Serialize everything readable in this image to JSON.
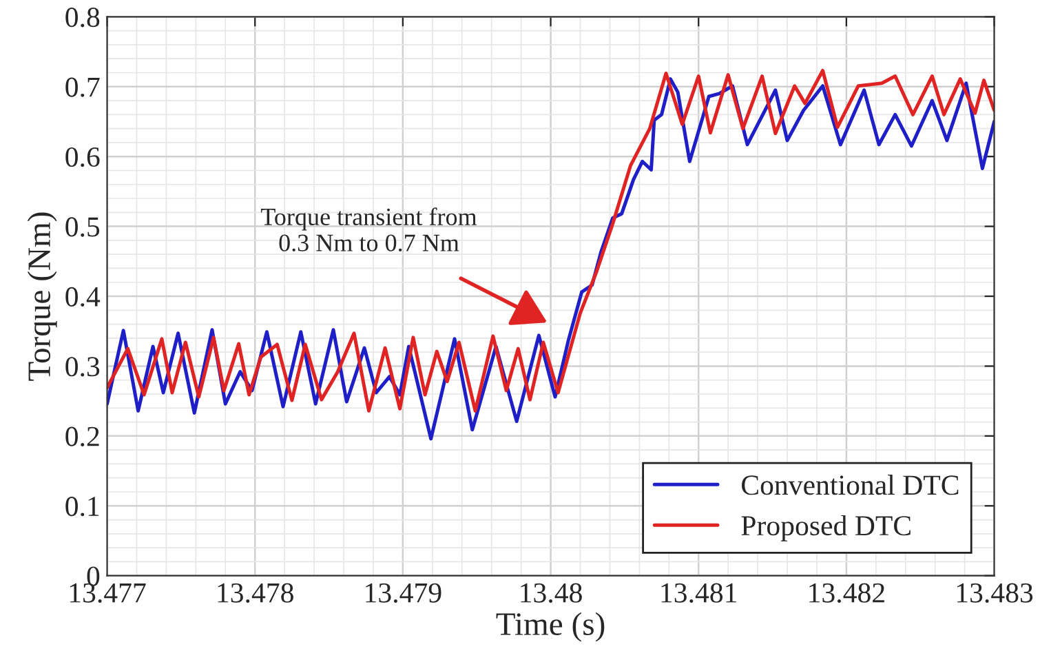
{
  "chart_data": {
    "type": "line",
    "xlabel": "Time (s)",
    "ylabel": "Torque (Nm)",
    "xlim": [
      13.477,
      13.483
    ],
    "xticks": [
      13.477,
      13.478,
      13.479,
      13.48,
      13.481,
      13.482,
      13.483
    ],
    "ylim": [
      0,
      0.8
    ],
    "yticks": [
      0,
      0.1,
      0.2,
      0.3,
      0.4,
      0.5,
      0.6,
      0.7,
      0.8
    ],
    "grid": true,
    "legend": "bottom right",
    "line_style": "solid",
    "marker": "none",
    "annotations": [
      "Torque transient from\n0.3 Nm to 0.7 Nm"
    ],
    "series": [
      {
        "name": "Conventional DTC",
        "color": "#1f1fc8",
        "x": [
          13.477,
          13.47711,
          13.47721,
          13.47731,
          13.47738,
          13.47748,
          13.47759,
          13.47771,
          13.4778,
          13.4779,
          13.47798,
          13.47808,
          13.47819,
          13.47831,
          13.47841,
          13.47853,
          13.47862,
          13.47874,
          13.47882,
          13.47891,
          13.47898,
          13.47904,
          13.47919,
          13.47935,
          13.47947,
          13.47963,
          13.47977,
          13.47992,
          13.48003,
          13.48012,
          13.48021,
          13.48028,
          13.48034,
          13.48042,
          13.48048,
          13.48056,
          13.48062,
          13.48068,
          13.4807,
          13.48075,
          13.48081,
          13.48086,
          13.48094,
          13.48107,
          13.48114,
          13.48123,
          13.48133,
          13.48152,
          13.4816,
          13.48171,
          13.48184,
          13.48196,
          13.48212,
          13.48222,
          13.48233,
          13.48244,
          13.48258,
          13.48268,
          13.48281,
          13.48292,
          13.483
        ],
        "values": [
          0.246,
          0.351,
          0.236,
          0.328,
          0.262,
          0.347,
          0.233,
          0.352,
          0.246,
          0.292,
          0.265,
          0.349,
          0.242,
          0.349,
          0.246,
          0.352,
          0.249,
          0.326,
          0.262,
          0.285,
          0.259,
          0.328,
          0.196,
          0.339,
          0.209,
          0.328,
          0.221,
          0.344,
          0.256,
          0.337,
          0.406,
          0.416,
          0.463,
          0.512,
          0.518,
          0.567,
          0.593,
          0.581,
          0.652,
          0.66,
          0.711,
          0.692,
          0.593,
          0.686,
          0.69,
          0.701,
          0.617,
          0.695,
          0.623,
          0.666,
          0.701,
          0.617,
          0.695,
          0.617,
          0.66,
          0.615,
          0.68,
          0.623,
          0.705,
          0.583,
          0.65
        ]
      },
      {
        "name": "Proposed DTC",
        "color": "#e02424",
        "x": [
          13.477,
          13.47714,
          13.47725,
          13.47737,
          13.47744,
          13.47753,
          13.47762,
          13.47772,
          13.47779,
          13.47789,
          13.47796,
          13.47804,
          13.47815,
          13.47825,
          13.47834,
          13.47845,
          13.47856,
          13.47867,
          13.47877,
          13.47888,
          13.47898,
          13.47907,
          13.47915,
          13.47923,
          13.4793,
          13.47938,
          13.47949,
          13.47961,
          13.4797,
          13.47978,
          13.47986,
          13.47995,
          13.48005,
          13.4802,
          13.48031,
          13.48042,
          13.48054,
          13.48067,
          13.48078,
          13.48089,
          13.481,
          13.48108,
          13.4812,
          13.4813,
          13.48143,
          13.48152,
          13.48165,
          13.48172,
          13.48184,
          13.48194,
          13.48208,
          13.48224,
          13.48233,
          13.48245,
          13.48258,
          13.48266,
          13.48277,
          13.48287,
          13.48293,
          13.483
        ],
        "values": [
          0.269,
          0.325,
          0.259,
          0.339,
          0.262,
          0.334,
          0.256,
          0.341,
          0.265,
          0.332,
          0.259,
          0.313,
          0.331,
          0.251,
          0.331,
          0.252,
          0.292,
          0.347,
          0.236,
          0.326,
          0.239,
          0.341,
          0.259,
          0.321,
          0.278,
          0.334,
          0.236,
          0.343,
          0.265,
          0.325,
          0.252,
          0.334,
          0.262,
          0.376,
          0.435,
          0.504,
          0.587,
          0.64,
          0.719,
          0.646,
          0.715,
          0.634,
          0.717,
          0.64,
          0.715,
          0.633,
          0.701,
          0.676,
          0.723,
          0.642,
          0.701,
          0.705,
          0.715,
          0.66,
          0.715,
          0.66,
          0.711,
          0.662,
          0.709,
          0.666
        ]
      }
    ]
  }
}
